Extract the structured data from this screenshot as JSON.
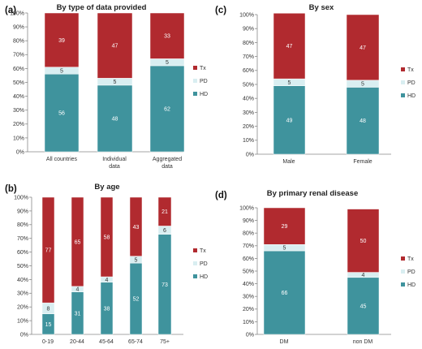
{
  "colors": {
    "Tx": "#b12a2f",
    "PD": "#d9eef1",
    "HD": "#3f939d"
  },
  "legend": [
    "Tx",
    "PD",
    "HD"
  ],
  "chart_data": [
    {
      "type": "bar",
      "stacked": true,
      "panel_label": "(a)",
      "title": "By type of data provided",
      "categories": [
        "All countries",
        "Individual data",
        "Aggregated data"
      ],
      "series": [
        {
          "name": "HD",
          "values": [
            56,
            48,
            62
          ]
        },
        {
          "name": "PD",
          "values": [
            5,
            5,
            5
          ]
        },
        {
          "name": "Tx",
          "values": [
            39,
            47,
            33
          ]
        }
      ],
      "ylim": [
        0,
        100
      ],
      "yticks": [
        "0%",
        "10%",
        "20%",
        "30%",
        "40%",
        "50%",
        "60%",
        "70%",
        "80%",
        "90%",
        "100%"
      ],
      "legend_position": "right"
    },
    {
      "type": "bar",
      "stacked": true,
      "panel_label": "(c)",
      "title": "By sex",
      "categories": [
        "Male",
        "Female"
      ],
      "series": [
        {
          "name": "HD",
          "values": [
            49,
            48
          ]
        },
        {
          "name": "PD",
          "values": [
            5,
            5
          ]
        },
        {
          "name": "Tx",
          "values": [
            47,
            47
          ]
        }
      ],
      "ylim": [
        0,
        100
      ],
      "yticks": [
        "0%",
        "10%",
        "20%",
        "30%",
        "40%",
        "50%",
        "60%",
        "70%",
        "80%",
        "90%",
        "100%"
      ],
      "legend_position": "right"
    },
    {
      "type": "bar",
      "stacked": true,
      "panel_label": "(b)",
      "title": "By age",
      "categories": [
        "0-19",
        "20-44",
        "45-64",
        "65-74",
        "75+"
      ],
      "series": [
        {
          "name": "HD",
          "values": [
            15,
            31,
            38,
            52,
            73
          ]
        },
        {
          "name": "PD",
          "values": [
            8,
            4,
            4,
            5,
            6
          ]
        },
        {
          "name": "Tx",
          "values": [
            77,
            65,
            58,
            43,
            21
          ]
        }
      ],
      "ylim": [
        0,
        100
      ],
      "yticks": [
        "0%",
        "10%",
        "20%",
        "30%",
        "40%",
        "50%",
        "60%",
        "70%",
        "80%",
        "90%",
        "100%"
      ],
      "legend_position": "right"
    },
    {
      "type": "bar",
      "stacked": true,
      "panel_label": "(d)",
      "title": "By primary renal disease",
      "categories": [
        "DM",
        "non DM"
      ],
      "series": [
        {
          "name": "HD",
          "values": [
            66,
            45
          ]
        },
        {
          "name": "PD",
          "values": [
            5,
            4
          ]
        },
        {
          "name": "Tx",
          "values": [
            29,
            50
          ]
        }
      ],
      "ylim": [
        0,
        100
      ],
      "yticks": [
        "0%",
        "10%",
        "20%",
        "30%",
        "40%",
        "50%",
        "60%",
        "70%",
        "80%",
        "90%",
        "100%"
      ],
      "legend_position": "right"
    }
  ]
}
